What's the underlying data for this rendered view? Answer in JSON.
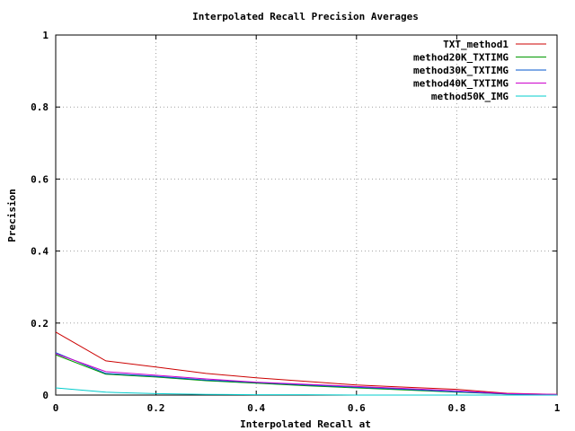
{
  "chart_data": {
    "type": "line",
    "title": "Interpolated Recall Precision Averages",
    "xlabel": "Interpolated Recall at",
    "ylabel": "Precision",
    "xlim": [
      0,
      1
    ],
    "ylim": [
      0,
      1
    ],
    "x_ticks": [
      "0",
      "0.2",
      "0.4",
      "0.6",
      "0.8",
      "1"
    ],
    "y_ticks": [
      "0",
      "0.2",
      "0.4",
      "0.6",
      "0.8",
      "1"
    ],
    "grid": true,
    "legend_position": "top-right",
    "x": [
      0,
      0.1,
      0.2,
      0.3,
      0.4,
      0.5,
      0.6,
      0.7,
      0.8,
      0.9,
      1.0
    ],
    "series": [
      {
        "name": "TXT_method1",
        "color": "#cc0000",
        "values": [
          0.175,
          0.095,
          0.078,
          0.06,
          0.048,
          0.038,
          0.028,
          0.022,
          0.016,
          0.005,
          0.002
        ]
      },
      {
        "name": "method20K_TXTIMG",
        "color": "#009900",
        "values": [
          0.112,
          0.058,
          0.05,
          0.04,
          0.033,
          0.026,
          0.02,
          0.014,
          0.008,
          0.003,
          0.001
        ]
      },
      {
        "name": "method30K_TXTIMG",
        "color": "#0055cc",
        "values": [
          0.118,
          0.06,
          0.052,
          0.042,
          0.035,
          0.028,
          0.022,
          0.016,
          0.009,
          0.003,
          0.001
        ]
      },
      {
        "name": "method40K_TXTIMG",
        "color": "#cc00cc",
        "values": [
          0.115,
          0.065,
          0.055,
          0.045,
          0.036,
          0.03,
          0.024,
          0.018,
          0.012,
          0.004,
          0.002
        ]
      },
      {
        "name": "method50K_IMG",
        "color": "#00cccc",
        "values": [
          0.02,
          0.008,
          0.004,
          0.002,
          0.001,
          0.001,
          0.0,
          0.0,
          0.0,
          0.0,
          0.0
        ]
      }
    ]
  }
}
